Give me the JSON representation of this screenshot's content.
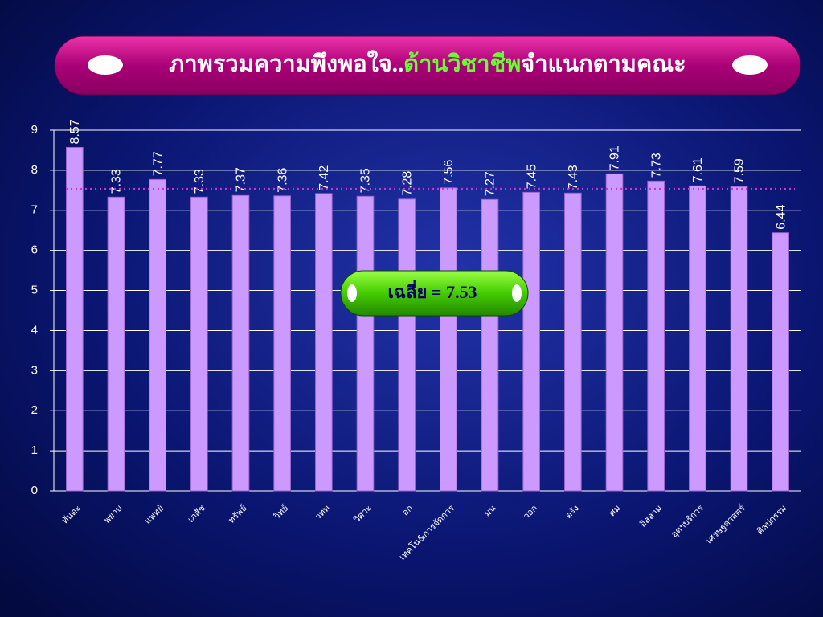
{
  "chart_data": {
    "type": "bar",
    "title": [
      "ภาพรวมความพึงพอใจ..",
      "ด้านวิชาชีพ",
      "จำแนกตามคณะ"
    ],
    "categories": [
      "ทันตะ",
      "พยาบ",
      "แพทย์",
      "เภสัช",
      "ทรัพย์",
      "วิทย์",
      "วทท",
      "วิศวะ",
      "อก",
      "เทคโน&การจัดการ",
      "มน",
      "วอก",
      "ตรัง",
      "ศม",
      "อิสลาม",
      "อุตฯบริการ",
      "เศรษฐศาสตร์",
      "ศิลปกรรม"
    ],
    "values": [
      8.57,
      7.33,
      7.77,
      7.33,
      7.37,
      7.36,
      7.42,
      7.35,
      7.28,
      7.56,
      7.27,
      7.45,
      7.43,
      7.91,
      7.73,
      7.61,
      7.59,
      6.44
    ],
    "color": "#cc99ff",
    "average": 7.53,
    "average_color": "#cc33cc",
    "annotation": "เฉลี่ย = 7.53",
    "ylim": [
      0,
      9
    ],
    "yticks": [
      0,
      1,
      2,
      3,
      4,
      5,
      6,
      7,
      8,
      9
    ],
    "grid": true
  }
}
